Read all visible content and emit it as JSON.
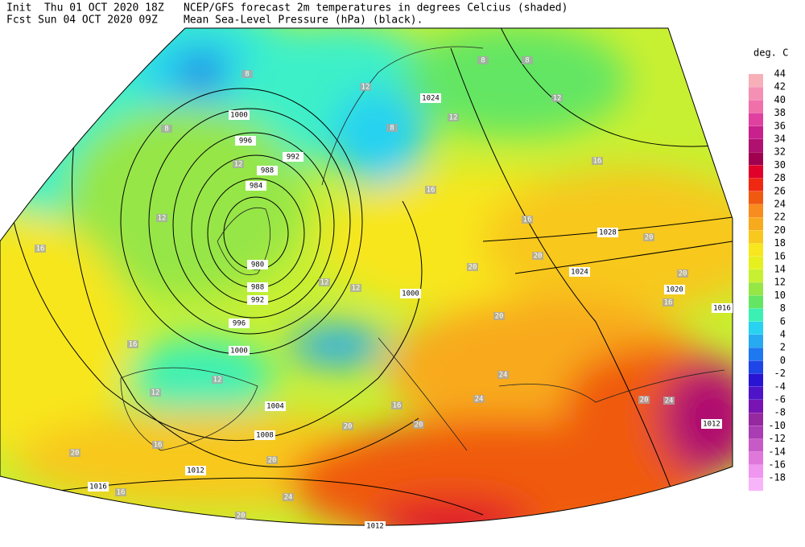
{
  "header": {
    "init": "Init  Thu 01 OCT 2020 18Z",
    "fcst": "Fcst Sun 04 OCT 2020 09Z",
    "title": "NCEP/GFS forecast 2m temperatures in degrees Celcius (shaded)",
    "subtitle": "Mean Sea-Level Pressure (hPa) (black)."
  },
  "legend": {
    "title": "deg. C",
    "items": [
      {
        "label": "44",
        "color": "#f7b0b8"
      },
      {
        "label": "42",
        "color": "#f490b4"
      },
      {
        "label": "40",
        "color": "#f070aa"
      },
      {
        "label": "38",
        "color": "#e040a0"
      },
      {
        "label": "36",
        "color": "#c8208c"
      },
      {
        "label": "34",
        "color": "#b01070"
      },
      {
        "label": "32",
        "color": "#a00050"
      },
      {
        "label": "30",
        "color": "#e0002a"
      },
      {
        "label": "28",
        "color": "#f02812"
      },
      {
        "label": "26",
        "color": "#f05a10"
      },
      {
        "label": "24",
        "color": "#f88c1e"
      },
      {
        "label": "22",
        "color": "#f8aa1e"
      },
      {
        "label": "20",
        "color": "#f8c81e"
      },
      {
        "label": "18",
        "color": "#f8e61e"
      },
      {
        "label": "16",
        "color": "#e6f01e"
      },
      {
        "label": "14",
        "color": "#c8f032"
      },
      {
        "label": "12",
        "color": "#96e646"
      },
      {
        "label": "10",
        "color": "#64e664"
      },
      {
        "label": "8",
        "color": "#3cf0b4"
      },
      {
        "label": "6",
        "color": "#28d2f0"
      },
      {
        "label": "4",
        "color": "#28aaf0"
      },
      {
        "label": "2",
        "color": "#1e78f0"
      },
      {
        "label": "0",
        "color": "#1e46e6"
      },
      {
        "label": "-2",
        "color": "#2814d2"
      },
      {
        "label": "-4",
        "color": "#5014c8"
      },
      {
        "label": "-6",
        "color": "#7814b4"
      },
      {
        "label": "-8",
        "color": "#9628a0"
      },
      {
        "label": "-10",
        "color": "#aa3cb4"
      },
      {
        "label": "-12",
        "color": "#c85ac8"
      },
      {
        "label": "-14",
        "color": "#e078dc"
      },
      {
        "label": "-16",
        "color": "#f096f0"
      },
      {
        "label": "-18",
        "color": "#f8b4f8"
      }
    ]
  },
  "map": {
    "isobar_labels": [
      "1000",
      "996",
      "992",
      "988",
      "984",
      "980",
      "988",
      "992",
      "996",
      "1000",
      "1004",
      "1008",
      "1012",
      "1016",
      "1012",
      "1012",
      "1000",
      "1024",
      "1028",
      "1024",
      "1020",
      "1016"
    ],
    "temperature_labels": [
      "8",
      "8",
      "12",
      "16",
      "12",
      "12",
      "12",
      "16",
      "12",
      "12",
      "16",
      "20",
      "16",
      "20",
      "24",
      "20",
      "16",
      "20",
      "20",
      "24",
      "24",
      "20",
      "24",
      "20",
      "20",
      "16",
      "16",
      "12",
      "8",
      "8",
      "16",
      "20",
      "20",
      "16",
      "12",
      "8",
      "12",
      "20"
    ]
  }
}
